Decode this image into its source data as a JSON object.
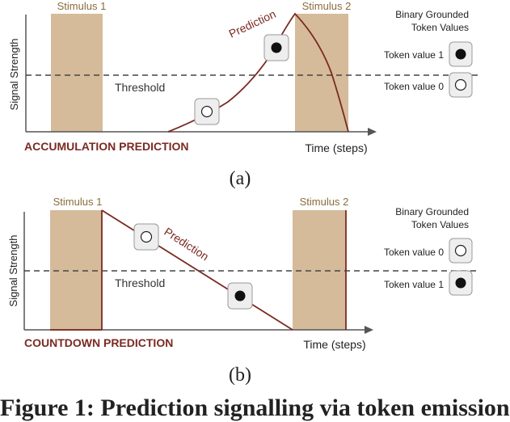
{
  "panel_a": {
    "stimulus1": "Stimulus 1",
    "stimulus2": "Stimulus 2",
    "ylabel": "Signal Strength",
    "threshold": "Threshold",
    "prediction": "Prediction",
    "xlabel": "Time (steps)",
    "title": "ACCUMULATION PREDICTION",
    "caption": "(a)",
    "legend": {
      "title_line1": "Binary Grounded",
      "title_line2": "Token Values",
      "item1": "Token value 1",
      "item2": "Token value 0"
    }
  },
  "panel_b": {
    "stimulus1": "Stimulus 1",
    "stimulus2": "Stimulus 2",
    "ylabel": "Signal Strength",
    "threshold": "Threshold",
    "prediction": "Prediction",
    "xlabel": "Time (steps)",
    "title": "COUNTDOWN PREDICTION",
    "caption": "(b)",
    "legend": {
      "title_line1": "Binary Grounded",
      "title_line2": "Token Values",
      "item1": "Token value 0",
      "item2": "Token value 1"
    }
  },
  "figure_caption": "Figure 1: Prediction signalling via token emission",
  "colors": {
    "stimulus_fill": "#d5bb9a",
    "curve": "#7a2a22",
    "title": "#7a2a22",
    "axis": "#555555",
    "threshold": "#444444"
  }
}
